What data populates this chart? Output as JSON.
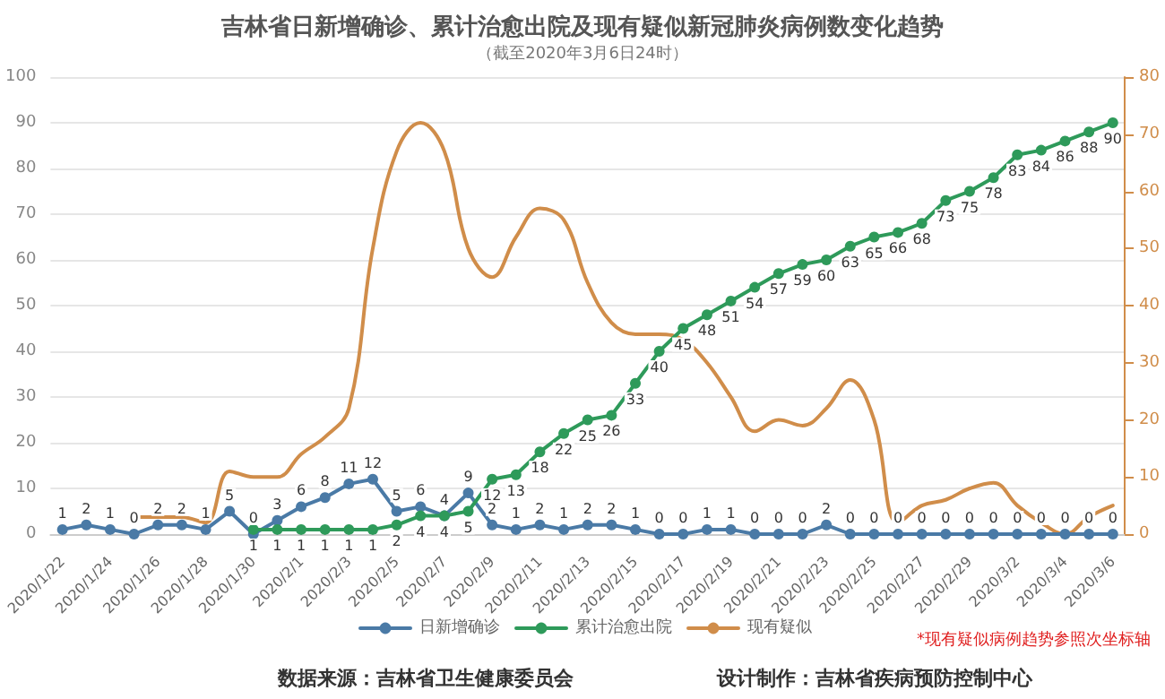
{
  "chart_data": {
    "type": "line",
    "title": "吉林省日新增确诊、累计治愈出院及现有疑似新冠肺炎病例数变化趋势",
    "subtitle": "（截至2020年3月6日24时）",
    "annotations": [
      "*现有疑似病例趋势参照次坐标轴",
      "数据来源：吉林省卫生健康委员会",
      "设计制作：吉林省疾病预防控制中心"
    ],
    "categories": [
      "2020/1/22",
      null,
      "2020/1/24",
      null,
      "2020/1/26",
      null,
      "2020/1/28",
      null,
      "2020/1/30",
      null,
      "2020/2/1",
      null,
      "2020/2/3",
      null,
      "2020/2/5",
      null,
      "2020/2/7",
      null,
      "2020/2/9",
      null,
      "2020/2/11",
      null,
      "2020/2/13",
      null,
      "2020/2/15",
      null,
      "2020/2/17",
      null,
      "2020/2/19",
      null,
      "2020/2/21",
      null,
      "2020/2/23",
      null,
      "2020/2/25",
      null,
      "2020/2/27",
      null,
      "2020/2/29",
      null,
      "2020/3/2",
      null,
      "2020/3/4",
      null,
      "2020/3/6"
    ],
    "series": [
      {
        "name": "日新增确诊",
        "color": "#4a7aa6",
        "marker": "circle",
        "data_labels": true,
        "values": [
          1,
          2,
          1,
          0,
          2,
          2,
          1,
          5,
          0,
          3,
          6,
          8,
          11,
          12,
          5,
          6,
          4,
          9,
          2,
          1,
          2,
          1,
          2,
          2,
          1,
          0,
          0,
          1,
          1,
          0,
          0,
          0,
          2,
          0,
          0,
          0,
          0,
          0,
          0,
          0,
          0,
          0,
          0,
          0,
          0
        ]
      },
      {
        "name": "累计治愈出院",
        "color": "#2e9a5a",
        "marker": "circle",
        "data_labels": true,
        "values": [
          null,
          null,
          null,
          null,
          null,
          null,
          null,
          null,
          1,
          1,
          1,
          1,
          1,
          1,
          2,
          4,
          4,
          5,
          12,
          13,
          18,
          22,
          25,
          26,
          33,
          40,
          45,
          48,
          51,
          54,
          57,
          59,
          60,
          63,
          65,
          66,
          68,
          73,
          75,
          78,
          83,
          84,
          86,
          88,
          90
        ]
      },
      {
        "name": "现有疑似",
        "color": "#d08d4a",
        "marker": "none",
        "axis": "y2",
        "values": [
          null,
          null,
          null,
          3,
          3,
          3,
          2,
          11,
          10,
          10,
          14,
          17,
          22,
          50,
          67,
          72,
          67,
          50,
          45,
          52,
          57,
          55,
          44,
          37,
          35,
          35,
          34,
          30,
          24,
          18,
          20,
          19,
          22,
          27,
          20,
          2,
          5,
          6,
          8,
          9,
          5,
          2,
          0,
          3,
          5
        ]
      }
    ],
    "ylim": [
      0,
      100
    ],
    "yticks": [
      0,
      10,
      20,
      30,
      40,
      50,
      60,
      70,
      80,
      90,
      100
    ],
    "y2lim": [
      0,
      80
    ],
    "y2ticks": [
      0,
      10,
      20,
      30,
      40,
      50,
      60,
      70,
      80
    ],
    "grid": "y",
    "legend": "bottom"
  }
}
